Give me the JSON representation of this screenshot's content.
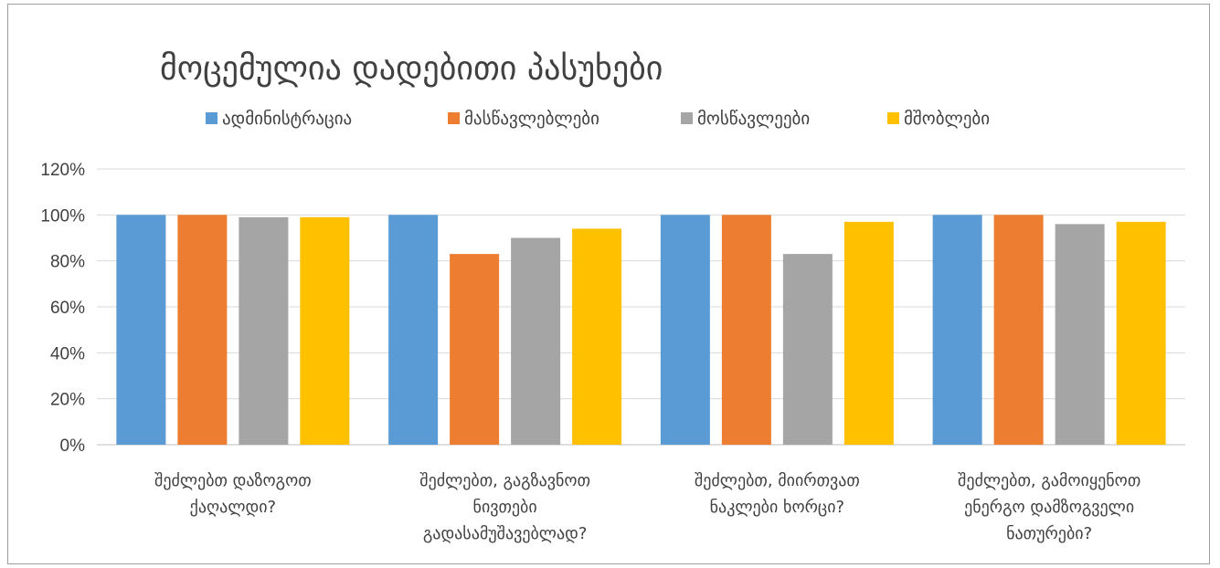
{
  "chart_data": {
    "type": "bar",
    "title": "მოცემულია დადებითი პასუხები",
    "categories": [
      [
        "შეძლებთ დაზოგოთ",
        "ქაღალდი?"
      ],
      [
        "შეძლებთ, გაგზავნოთ",
        "ნივთები",
        "გადასამუშავებლად?"
      ],
      [
        "შეძლებთ, მიირთვათ",
        "ნაკლები ხორცი?"
      ],
      [
        "შეძლებთ, გამოიყენოთ",
        "ენერგო დამზოგველი",
        "ნათურები?"
      ]
    ],
    "series": [
      {
        "name": "ადმინისტრაცია",
        "color": "#5b9bd5",
        "values": [
          1.0,
          1.0,
          1.0,
          1.0
        ]
      },
      {
        "name": "მასწავლებლები",
        "color": "#ed7d31",
        "values": [
          1.0,
          0.83,
          1.0,
          1.0
        ]
      },
      {
        "name": "მოსწავლეები",
        "color": "#a5a5a5",
        "values": [
          0.99,
          0.9,
          0.83,
          0.96
        ]
      },
      {
        "name": "მშობლები",
        "color": "#ffc000",
        "values": [
          0.99,
          0.94,
          0.97,
          0.97
        ]
      }
    ],
    "y_ticks": [
      "0%",
      "20%",
      "40%",
      "60%",
      "80%",
      "100%",
      "120%"
    ],
    "ylim": [
      0,
      1.2
    ],
    "grid": true,
    "legend_position": "top"
  }
}
